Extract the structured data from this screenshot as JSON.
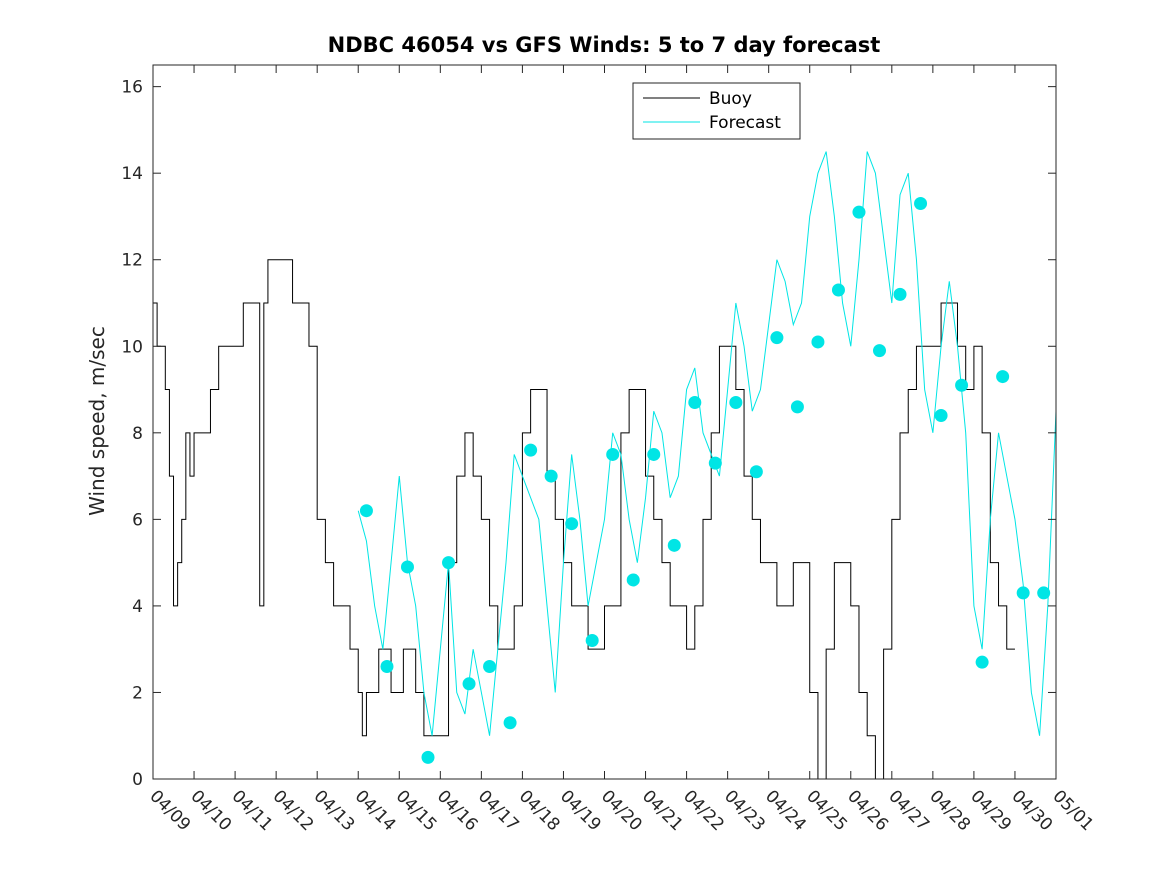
{
  "chart_data": {
    "type": "line",
    "title": "NDBC 46054 vs GFS Winds: 5 to 7 day forecast",
    "ylabel": "Wind speed, m/sec",
    "xlabel": "",
    "ylim": [
      0,
      16.5
    ],
    "yticks": [
      0,
      2,
      4,
      6,
      8,
      10,
      12,
      14,
      16
    ],
    "xlim": [
      0,
      21
    ],
    "xticks": [
      {
        "x": 0,
        "label": "04/09"
      },
      {
        "x": 1,
        "label": "04/10"
      },
      {
        "x": 2,
        "label": "04/11"
      },
      {
        "x": 3,
        "label": "04/12"
      },
      {
        "x": 4,
        "label": "04/13"
      },
      {
        "x": 5,
        "label": "04/14"
      },
      {
        "x": 6,
        "label": "04/15"
      },
      {
        "x": 7,
        "label": "04/16"
      },
      {
        "x": 8,
        "label": "04/17"
      },
      {
        "x": 9,
        "label": "04/18"
      },
      {
        "x": 10,
        "label": "04/19"
      },
      {
        "x": 11,
        "label": "04/20"
      },
      {
        "x": 12,
        "label": "04/21"
      },
      {
        "x": 13,
        "label": "04/22"
      },
      {
        "x": 14,
        "label": "04/23"
      },
      {
        "x": 15,
        "label": "04/24"
      },
      {
        "x": 16,
        "label": "04/25"
      },
      {
        "x": 17,
        "label": "04/26"
      },
      {
        "x": 18,
        "label": "04/27"
      },
      {
        "x": 19,
        "label": "04/28"
      },
      {
        "x": 20,
        "label": "04/29"
      },
      {
        "x": 21,
        "label": "04/30"
      },
      {
        "x": 22,
        "label": "05/01"
      }
    ],
    "grid": false,
    "legend": {
      "position": "top-center",
      "entries": [
        {
          "name": "Buoy",
          "color": "#000000"
        },
        {
          "name": "Forecast",
          "color": "#00e5e5"
        }
      ]
    },
    "series": [
      {
        "name": "Buoy",
        "color": "#000000",
        "style": "step",
        "x": [
          0,
          0.1,
          0.2,
          0.3,
          0.4,
          0.5,
          0.6,
          0.7,
          0.8,
          0.9,
          1.0,
          1.2,
          1.4,
          1.6,
          1.8,
          2.0,
          2.2,
          2.4,
          2.6,
          2.7,
          2.8,
          2.9,
          3.0,
          3.2,
          3.4,
          3.6,
          3.8,
          4.0,
          4.2,
          4.4,
          4.6,
          4.8,
          5.0,
          5.1,
          5.2,
          5.4,
          5.5,
          5.6,
          5.8,
          6.0,
          6.1,
          6.2,
          6.4,
          6.6,
          6.8,
          7.0,
          7.2,
          7.4,
          7.6,
          7.8,
          8.0,
          8.2,
          8.4,
          8.6,
          8.8,
          9.0,
          9.2,
          9.4,
          9.6,
          9.8,
          10.0,
          10.2,
          10.4,
          10.6,
          10.8,
          11.0,
          11.2,
          11.4,
          11.6,
          11.8,
          12.0,
          12.2,
          12.4,
          12.6,
          12.8,
          13.0,
          13.2,
          13.4,
          13.6,
          13.8,
          14.0,
          14.2,
          14.4,
          14.6,
          14.8,
          15.0,
          15.2,
          15.4,
          15.6,
          15.8,
          16.0,
          16.2,
          16.4,
          16.6,
          16.8,
          17.0,
          17.2,
          17.4,
          17.6,
          17.8,
          18.0,
          18.2,
          18.4,
          18.6,
          18.8,
          19.0,
          19.2,
          19.4,
          19.6,
          19.8,
          20.0,
          20.2,
          20.4,
          20.6,
          20.8,
          21.0
        ],
        "values": [
          11,
          10,
          10,
          9,
          7,
          4,
          5,
          6,
          8,
          7,
          8,
          8,
          9,
          10,
          10,
          10,
          11,
          11,
          4,
          11,
          12,
          12,
          12,
          12,
          11,
          11,
          10,
          6,
          5,
          4,
          4,
          3,
          2,
          1,
          2,
          2,
          3,
          3,
          2,
          2,
          3,
          3,
          2,
          1,
          1,
          1,
          5,
          7,
          8,
          7,
          6,
          4,
          3,
          3,
          4,
          8,
          9,
          9,
          7,
          6,
          5,
          4,
          4,
          3,
          3,
          4,
          4,
          8,
          9,
          9,
          7,
          6,
          5,
          4,
          4,
          3,
          4,
          6,
          8,
          10,
          10,
          9,
          7,
          6,
          5,
          5,
          4,
          4,
          5,
          5,
          2,
          0,
          3,
          5,
          5,
          4,
          2,
          1,
          0,
          3,
          6,
          8,
          9,
          10,
          10,
          10,
          11,
          11,
          10,
          9,
          10,
          8,
          5,
          4,
          3,
          3
        ]
      },
      {
        "name": "Forecast",
        "color": "#00e5e5",
        "style": "line",
        "x": [
          5.0,
          5.2,
          5.4,
          5.6,
          5.8,
          6.0,
          6.2,
          6.4,
          6.6,
          6.8,
          7.0,
          7.2,
          7.4,
          7.6,
          7.8,
          8.0,
          8.2,
          8.4,
          8.6,
          8.8,
          9.0,
          9.2,
          9.4,
          9.6,
          9.8,
          10.0,
          10.2,
          10.4,
          10.6,
          10.8,
          11.0,
          11.2,
          11.4,
          11.6,
          11.8,
          12.0,
          12.2,
          12.4,
          12.6,
          12.8,
          13.0,
          13.2,
          13.4,
          13.6,
          13.8,
          14.0,
          14.2,
          14.4,
          14.6,
          14.8,
          15.0,
          15.2,
          15.4,
          15.6,
          15.8,
          16.0,
          16.2,
          16.4,
          16.6,
          16.8,
          17.0,
          17.2,
          17.4,
          17.6,
          17.8,
          18.0,
          18.2,
          18.4,
          18.6,
          18.8,
          19.0,
          19.2,
          19.4,
          19.6,
          19.8,
          20.0,
          20.2,
          20.4,
          20.6,
          20.8,
          21.0,
          21.2,
          21.4,
          21.6,
          21.8,
          22.0
        ],
        "values": [
          6.2,
          5.5,
          4.0,
          3.0,
          5.0,
          7.0,
          5.0,
          4.0,
          2.0,
          1.0,
          3.0,
          5.0,
          2.0,
          1.5,
          3.0,
          2.0,
          1.0,
          3.0,
          5.0,
          7.5,
          7.0,
          6.5,
          6.0,
          4.0,
          2.0,
          5.0,
          7.5,
          6.0,
          4.0,
          5.0,
          6.0,
          8.0,
          7.5,
          6.0,
          5.0,
          6.5,
          8.5,
          8.0,
          6.5,
          7.0,
          9.0,
          9.5,
          8.0,
          7.5,
          7.0,
          9.0,
          11.0,
          10.0,
          8.5,
          9.0,
          10.5,
          12.0,
          11.5,
          10.5,
          11.0,
          13.0,
          14.0,
          14.5,
          13.0,
          11.0,
          10.0,
          12.0,
          14.5,
          14.0,
          12.5,
          11.0,
          13.5,
          14.0,
          12.0,
          9.0,
          8.0,
          10.0,
          11.5,
          10.0,
          8.0,
          4.0,
          3.0,
          6.0,
          8.0,
          7.0,
          6.0,
          4.5,
          2.0,
          1.0,
          4.0,
          8.5
        ]
      },
      {
        "name": "Forecast",
        "color": "#00e5e5",
        "style": "markers",
        "x": [
          5.2,
          5.7,
          6.2,
          6.7,
          7.2,
          7.7,
          8.2,
          8.7,
          9.2,
          9.7,
          10.2,
          10.7,
          11.2,
          11.7,
          12.2,
          12.7,
          13.2,
          13.7,
          14.2,
          14.7,
          15.2,
          15.7,
          16.2,
          16.7,
          17.2,
          17.7,
          18.2,
          18.7,
          19.2,
          19.7,
          20.2,
          20.7,
          21.2,
          21.7
        ],
        "values": [
          6.2,
          2.6,
          4.9,
          0.5,
          5.0,
          2.2,
          2.6,
          1.3,
          7.6,
          7.0,
          5.9,
          3.2,
          7.5,
          4.6,
          7.5,
          5.4,
          8.7,
          7.3,
          8.7,
          7.1,
          10.2,
          8.6,
          10.1,
          11.3,
          13.1,
          9.9,
          11.2,
          13.3,
          8.4,
          9.1,
          2.7,
          9.3,
          4.3,
          4.3
        ]
      }
    ]
  }
}
